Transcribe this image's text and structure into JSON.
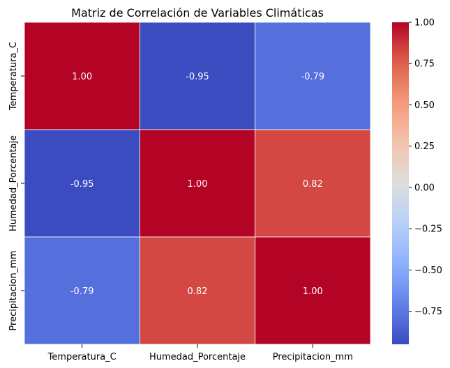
{
  "chart_data": {
    "type": "heatmap",
    "title": "Matriz de Correlación de Variables Climáticas",
    "xlabel": "",
    "ylabel": "",
    "x_categories": [
      "Temperatura_C",
      "Humedad_Porcentaje",
      "Precipitacion_mm"
    ],
    "y_categories": [
      "Temperatura_C",
      "Humedad_Porcentaje",
      "Precipitacion_mm"
    ],
    "values": [
      [
        1.0,
        -0.95,
        -0.79
      ],
      [
        -0.95,
        1.0,
        0.82
      ],
      [
        -0.79,
        0.82,
        1.0
      ]
    ],
    "annotations": [
      [
        "1.00",
        "-0.95",
        "-0.79"
      ],
      [
        "-0.95",
        "1.00",
        "0.82"
      ],
      [
        "-0.79",
        "0.82",
        "1.00"
      ]
    ],
    "colormap": "coolwarm",
    "color_range": [
      -0.95,
      1.0
    ],
    "colorbar_ticks": [
      1.0,
      0.75,
      0.5,
      0.25,
      0.0,
      -0.25,
      -0.5,
      -0.75
    ],
    "colorbar_tick_labels": [
      "1.00",
      "0.75",
      "0.50",
      "0.25",
      "0.00",
      "−0.25",
      "−0.50",
      "−0.75"
    ],
    "grid": false,
    "legend": "colorbar-right"
  }
}
